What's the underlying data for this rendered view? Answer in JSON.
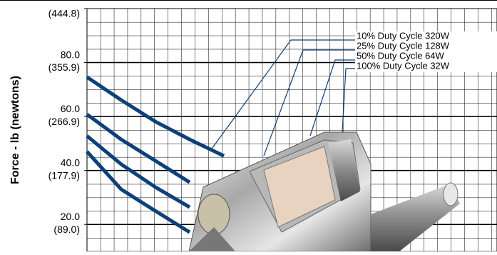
{
  "chart_data": {
    "type": "line",
    "y_label": "Force - lb (newtons)",
    "categories": [
      null,
      null,
      null,
      null,
      null,
      null,
      null,
      null,
      null,
      null,
      null,
      null
    ],
    "series": [
      {
        "name": "10% Duty Cycle 320W",
        "color": "#0d3f7a",
        "values": [
          74.6,
          66.1,
          58.1,
          51.5,
          45.4,
          null,
          null,
          null,
          null,
          null,
          null,
          null
        ]
      },
      {
        "name": "25% Duty Cycle 128W",
        "color": "#0d3f7a",
        "values": [
          60.8,
          51.5,
          43.6,
          35.6,
          null,
          null,
          null,
          null,
          null,
          null,
          null,
          null
        ]
      },
      {
        "name": "50% Duty Cycle 64W",
        "color": "#0d3f7a",
        "values": [
          52.8,
          42.3,
          33.8,
          26.4,
          null,
          null,
          null,
          null,
          null,
          null,
          null,
          null
        ]
      },
      {
        "name": "100% Duty Cycle 32W",
        "color": "#0d3f7a",
        "values": [
          47.0,
          33.0,
          25.0,
          17.1,
          null,
          null,
          null,
          null,
          null,
          null,
          null,
          null
        ]
      }
    ],
    "ylim": [
      10,
      100
    ],
    "yticks": [
      {
        "value": 80,
        "label": "80.0"
      },
      {
        "value": 60,
        "label": "60.0"
      },
      {
        "value": 40,
        "label": "40.0"
      },
      {
        "value": 20,
        "label": "20.0"
      }
    ],
    "y2lim": [
      44.5,
      444.8
    ],
    "y2ticks": [
      {
        "value": 444.8,
        "label": "(444.8)"
      },
      {
        "value": 355.9,
        "label": "(355.9)"
      },
      {
        "value": 266.9,
        "label": "(266.9)"
      },
      {
        "value": 177.9,
        "label": "(177.9)"
      },
      {
        "value": 89.0,
        "label": "(89.0)"
      }
    ],
    "grid": true
  }
}
